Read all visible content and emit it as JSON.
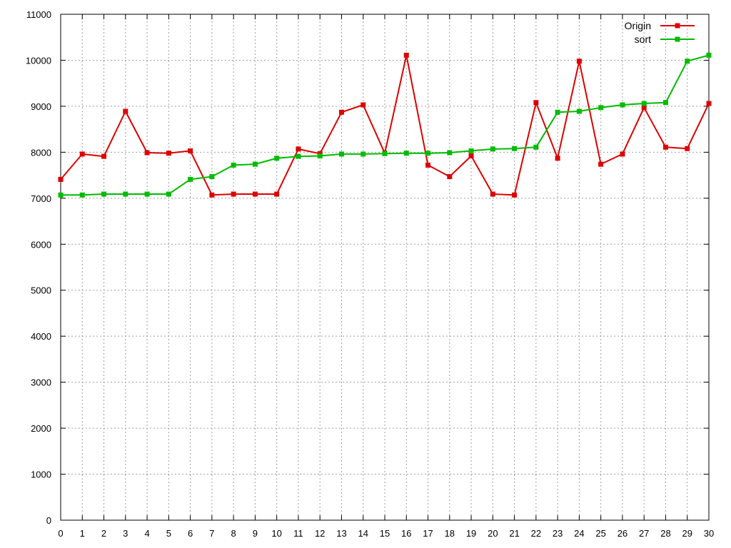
{
  "chart_data": {
    "type": "line",
    "x": [
      0,
      1,
      2,
      3,
      4,
      5,
      6,
      7,
      8,
      9,
      10,
      11,
      12,
      13,
      14,
      15,
      16,
      17,
      18,
      19,
      20,
      21,
      22,
      23,
      24,
      25,
      26,
      27,
      28,
      29,
      30
    ],
    "x_ticks": [
      "0",
      "1",
      "2",
      "3",
      "4",
      "5",
      "6",
      "7",
      "8",
      "9",
      "10",
      "11",
      "12",
      "13",
      "14",
      "15",
      "16",
      "17",
      "18",
      "19",
      "20",
      "21",
      "22",
      "23",
      "24",
      "25",
      "26",
      "27",
      "28",
      "29",
      "30"
    ],
    "y_ticks": [
      "0",
      "1000",
      "2000",
      "3000",
      "4000",
      "5000",
      "6000",
      "7000",
      "8000",
      "9000",
      "10000",
      "11000"
    ],
    "xlim": [
      0,
      30
    ],
    "ylim": [
      0,
      11000
    ],
    "grid": true,
    "legend": "top-right",
    "series": [
      {
        "name": "Origin",
        "color": "#dd0000",
        "values": [
          7410,
          7960,
          7910,
          8890,
          7990,
          7980,
          8030,
          7070,
          7090,
          7090,
          7090,
          8070,
          7970,
          8870,
          9030,
          7980,
          10110,
          7720,
          7470,
          7920,
          7090,
          7070,
          9080,
          7870,
          9980,
          7740,
          7960,
          8970,
          8110,
          8080,
          9060
        ]
      },
      {
        "name": "sort",
        "color": "#00bb00",
        "values": [
          7070,
          7070,
          7090,
          7090,
          7090,
          7090,
          7410,
          7470,
          7720,
          7740,
          7870,
          7910,
          7920,
          7960,
          7960,
          7970,
          7980,
          7980,
          7990,
          8030,
          8070,
          8080,
          8110,
          8870,
          8890,
          8970,
          9030,
          9060,
          9080,
          9980,
          10110
        ]
      }
    ]
  }
}
